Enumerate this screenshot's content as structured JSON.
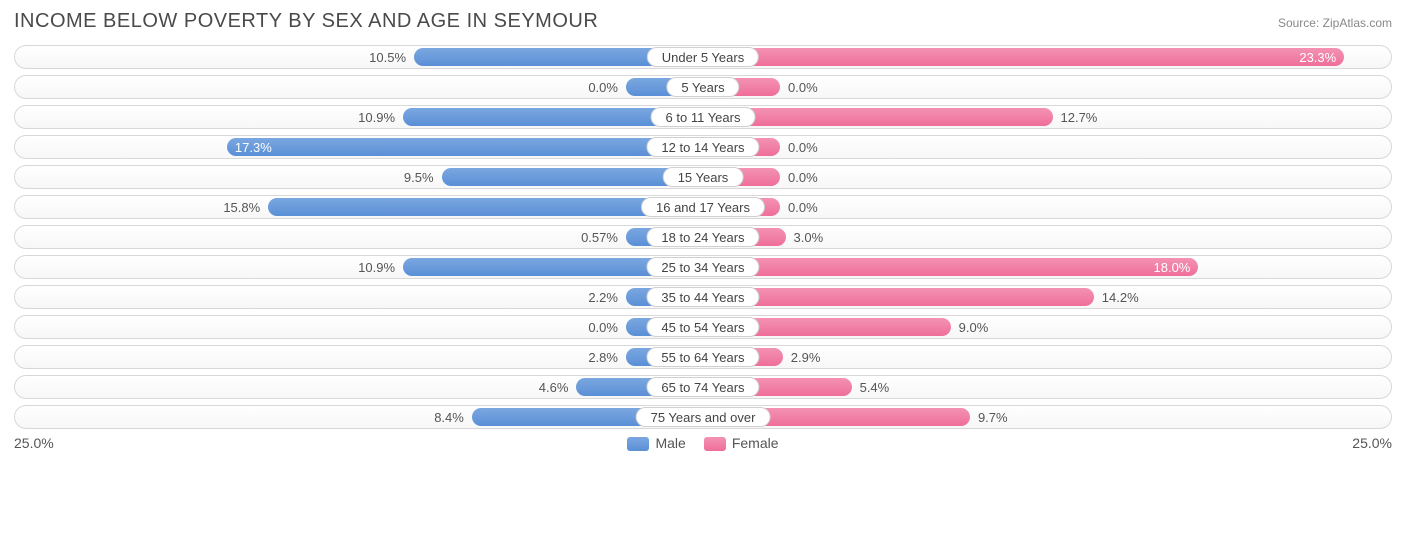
{
  "title": "INCOME BELOW POVERTY BY SEX AND AGE IN SEYMOUR",
  "source": "Source: ZipAtlas.com",
  "axis_max": 25.0,
  "axis_label": "25.0%",
  "min_bar_pct": 2.8,
  "colors": {
    "male_top": "#7ba7e0",
    "male_bot": "#5a8fd6",
    "female_top": "#f492b4",
    "female_bot": "#ee6e9a",
    "row_border": "#d8d8d8",
    "text": "#555555",
    "title": "#4a4a4a",
    "source": "#888888",
    "bg": "#ffffff"
  },
  "legend": {
    "male": "Male",
    "female": "Female"
  },
  "inside_threshold": 16.0,
  "rows": [
    {
      "label": "Under 5 Years",
      "male": 10.5,
      "female": 23.3
    },
    {
      "label": "5 Years",
      "male": 0.0,
      "female": 0.0
    },
    {
      "label": "6 to 11 Years",
      "male": 10.9,
      "female": 12.7
    },
    {
      "label": "12 to 14 Years",
      "male": 17.3,
      "female": 0.0
    },
    {
      "label": "15 Years",
      "male": 9.5,
      "female": 0.0
    },
    {
      "label": "16 and 17 Years",
      "male": 15.8,
      "female": 0.0
    },
    {
      "label": "18 to 24 Years",
      "male": 0.57,
      "female": 3.0
    },
    {
      "label": "25 to 34 Years",
      "male": 10.9,
      "female": 18.0
    },
    {
      "label": "35 to 44 Years",
      "male": 2.2,
      "female": 14.2
    },
    {
      "label": "45 to 54 Years",
      "male": 0.0,
      "female": 9.0
    },
    {
      "label": "55 to 64 Years",
      "male": 2.8,
      "female": 2.9
    },
    {
      "label": "65 to 74 Years",
      "male": 4.6,
      "female": 5.4
    },
    {
      "label": "75 Years and over",
      "male": 8.4,
      "female": 9.7
    }
  ]
}
